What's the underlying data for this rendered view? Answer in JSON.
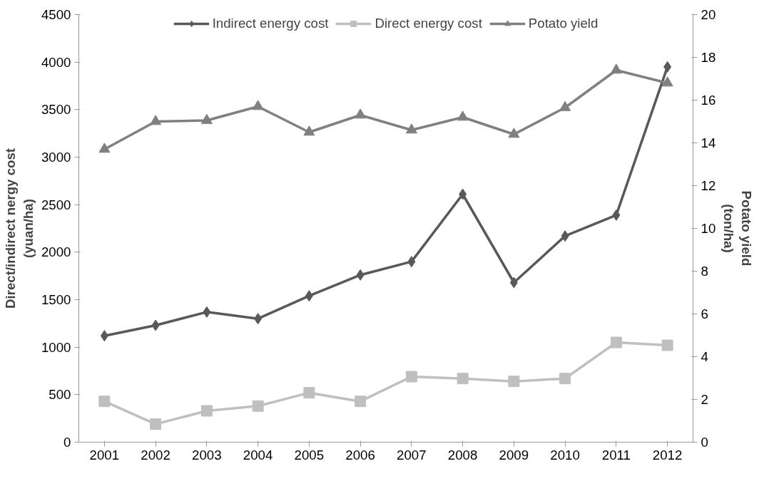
{
  "chart_data": {
    "type": "line",
    "categories": [
      "2001",
      "2002",
      "2003",
      "2004",
      "2005",
      "2006",
      "2007",
      "2008",
      "2009",
      "2010",
      "2011",
      "2012"
    ],
    "ylabel": "Direct/indirect nergy cost\n(yuan/ha)",
    "y2label": "Potato yield\n(ton/ha)",
    "ylim": [
      0,
      4500
    ],
    "yticks": [
      0,
      500,
      1000,
      1500,
      2000,
      2500,
      3000,
      3500,
      4000,
      4500
    ],
    "y2lim": [
      0,
      20
    ],
    "y2ticks": [
      0,
      2,
      4,
      6,
      8,
      10,
      12,
      14,
      16,
      18,
      20
    ],
    "grid": false,
    "legend": "top",
    "series": [
      {
        "name": "Indirect energy cost",
        "color": "#595959",
        "marker": "diamond",
        "values": [
          1120,
          1230,
          1370,
          1300,
          1540,
          1760,
          1900,
          2610,
          1680,
          2170,
          2390,
          3950
        ]
      },
      {
        "name": "Direct energy cost",
        "color": "#bfbfbf",
        "marker": "square",
        "values": [
          430,
          190,
          330,
          380,
          520,
          430,
          690,
          670,
          640,
          670,
          1050,
          1020
        ]
      },
      {
        "name": "Potato yield",
        "color": "#808080",
        "marker": "triangle",
        "axis": "y2",
        "values": [
          13.7,
          15.0,
          15.05,
          15.7,
          14.5,
          15.3,
          14.6,
          15.2,
          14.4,
          15.65,
          17.4,
          16.8
        ]
      }
    ]
  }
}
